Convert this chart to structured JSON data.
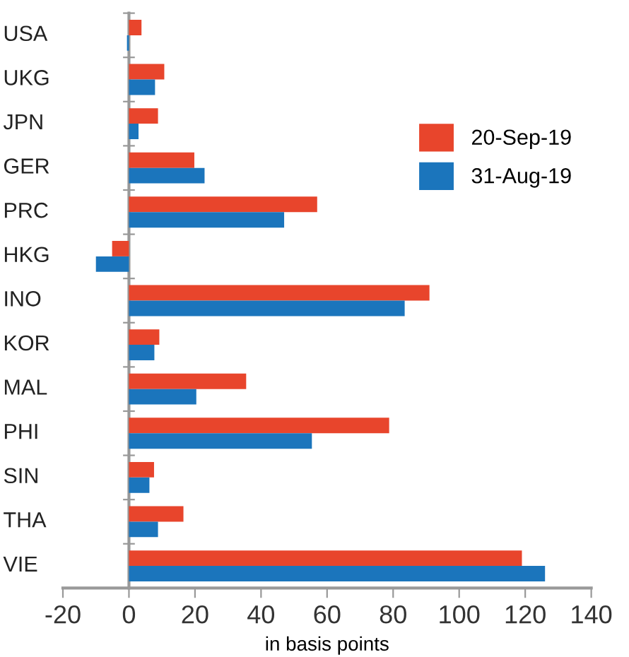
{
  "chart_data": {
    "type": "bar",
    "orientation": "horizontal",
    "categories": [
      "USA",
      "UKG",
      "JPN",
      "GER",
      "PRC",
      "HKG",
      "INO",
      "KOR",
      "MAL",
      "PHI",
      "SIN",
      "THA",
      "VIE"
    ],
    "series": [
      {
        "name": "20-Sep-19",
        "color": "#e8452c",
        "values": [
          3.8,
          10.7,
          8.8,
          19.8,
          57,
          -5.1,
          91,
          9.2,
          35.5,
          78.8,
          7.6,
          16.5,
          119
        ]
      },
      {
        "name": "31-Aug-19",
        "color": "#1b75bc",
        "values": [
          -0.6,
          7.9,
          2.9,
          22.9,
          47,
          -10,
          83.5,
          7.7,
          20.4,
          55.4,
          6.2,
          8.8,
          126
        ]
      }
    ],
    "xlim": [
      -20,
      140
    ],
    "xticks": [
      -20,
      0,
      20,
      40,
      60,
      80,
      100,
      120,
      140
    ],
    "xlabel": "in basis points",
    "legend": "right"
  }
}
